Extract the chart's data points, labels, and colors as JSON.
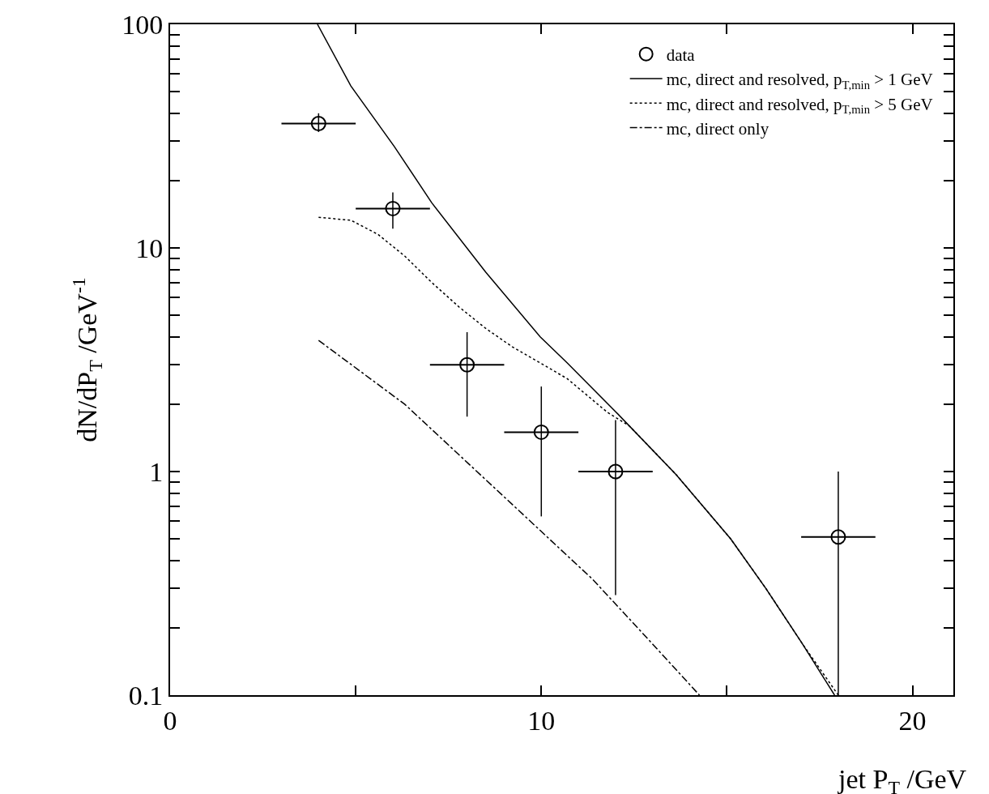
{
  "chart_data": {
    "type": "scatter",
    "xlabel": "jet P$_{T}$ /GeV",
    "ylabel": "dN/dP$_{T}$ /GeV$^{-1}$",
    "xlim": [
      0,
      21.1
    ],
    "ylim": [
      0.1,
      100
    ],
    "log": "y",
    "legend": "top right",
    "xticks": [
      0,
      {
        "value": 5,
        "label": null
      },
      10,
      {
        "value": 15,
        "label": null
      },
      20
    ],
    "yticks": [
      0.1,
      {
        "value": 0.2,
        "label": null
      },
      {
        "value": 0.3,
        "label": null
      },
      {
        "value": 0.4,
        "label": null
      },
      {
        "value": 0.5,
        "label": null
      },
      {
        "value": 0.6,
        "label": null
      },
      {
        "value": 0.7,
        "label": null
      },
      {
        "value": 0.8,
        "label": null
      },
      {
        "value": 0.9,
        "label": null
      },
      1,
      {
        "value": 2,
        "label": null
      },
      {
        "value": 3,
        "label": null
      },
      {
        "value": 4,
        "label": null
      },
      {
        "value": 5,
        "label": null
      },
      {
        "value": 6,
        "label": null
      },
      {
        "value": 7,
        "label": null
      },
      {
        "value": 8,
        "label": null
      },
      {
        "value": 9,
        "label": null
      },
      10,
      {
        "value": 20,
        "label": null
      },
      {
        "value": 30,
        "label": null
      },
      {
        "value": 40,
        "label": null
      },
      {
        "value": 50,
        "label": null
      },
      {
        "value": 60,
        "label": null
      },
      {
        "value": 70,
        "label": null
      },
      {
        "value": 80,
        "label": null
      },
      {
        "value": 90,
        "label": null
      },
      100
    ],
    "series": [
      {
        "name": "data",
        "marker": "circle",
        "color": "#000000",
        "x": [
          4,
          6,
          8,
          10,
          12,
          18
        ],
        "values": [
          36,
          15,
          3.0,
          1.5,
          1.0,
          0.51
        ],
        "errors": [
          [
            33,
            40
          ],
          [
            12.2,
            17.7
          ],
          [
            1.76,
            4.2
          ],
          [
            0.63,
            2.4
          ],
          [
            0.28,
            1.7
          ],
          [
            0.1,
            1.0
          ]
        ],
        "xerrors": [
          1,
          1,
          1,
          1,
          1,
          1
        ]
      },
      {
        "name": "mc, direct and resolved, p$_{T,min}$ > 1 GeV",
        "type": "line",
        "line_style": "solid",
        "color": "#000000",
        "x": [
          3.97,
          4.87,
          6.04,
          7.05,
          8.5,
          9.97,
          10.7,
          12.06,
          13.63,
          15.1,
          16.05,
          17.03,
          17.9
        ],
        "values": [
          100,
          53,
          28.4,
          15.9,
          7.8,
          4.0,
          3.06,
          1.81,
          0.97,
          0.5,
          0.3,
          0.17,
          0.1
        ]
      },
      {
        "name": "mc, direct and resolved, p$_{T,min}$ > 5 GeV",
        "type": "line",
        "line_style": "dotted",
        "color": "#000000",
        "x": [
          4.0,
          4.87,
          5.6,
          6.32,
          7.05,
          7.78,
          8.5,
          9.23,
          9.97,
          10.7,
          11.78,
          12.37,
          13.63,
          15.1,
          16.05,
          17.03,
          18.0
        ],
        "values": [
          13.7,
          13.3,
          11.5,
          9.2,
          7.0,
          5.45,
          4.37,
          3.6,
          3.06,
          2.6,
          1.84,
          1.6,
          0.97,
          0.5,
          0.3,
          0.17,
          0.1
        ]
      },
      {
        "name": "mc, direct only",
        "type": "line",
        "line_style": "dashdot",
        "color": "#000000",
        "x": [
          4.0,
          6.32,
          11.38,
          12.85,
          14.26
        ],
        "values": [
          3.86,
          2.0,
          0.33,
          0.18,
          0.1
        ]
      }
    ]
  }
}
